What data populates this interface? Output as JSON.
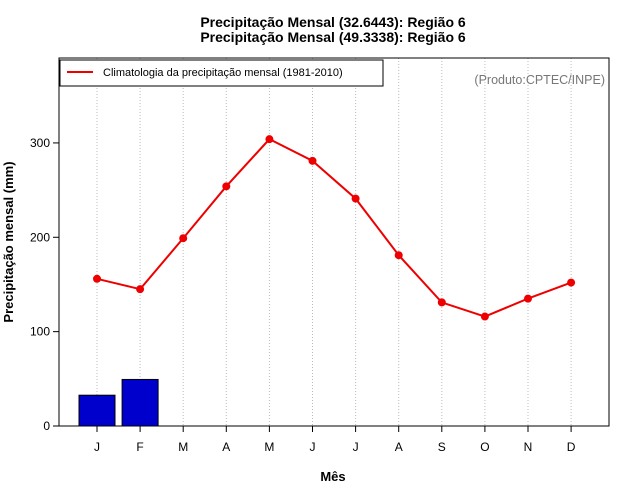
{
  "chart_data": {
    "type": "bar",
    "title_lines": [
      "Precipitação Mensal (32.6443): Região 6",
      "Precipitação Mensal (49.3338): Região 6"
    ],
    "xlabel": "Mês",
    "ylabel": "Precipitação mensal (mm)",
    "credit": "(Produto:CPTEC/INPE)",
    "categories": [
      "J",
      "F",
      "M",
      "A",
      "M",
      "J",
      "J",
      "A",
      "S",
      "O",
      "N",
      "D"
    ],
    "ylim": [
      0,
      390
    ],
    "yticks": [
      0,
      100,
      200,
      300
    ],
    "grid": "vertical dotted",
    "legend_position": "top-left",
    "bars": {
      "values": [
        32.6443,
        49.3338
      ],
      "color": "#0000CC"
    },
    "series": [
      {
        "name": "Climatologia da precipitação mensal (1981-2010)",
        "type": "line",
        "color": "#EE0000",
        "values": [
          156,
          145,
          199,
          254,
          304,
          281,
          241,
          181,
          131,
          116,
          135,
          152
        ]
      }
    ]
  }
}
